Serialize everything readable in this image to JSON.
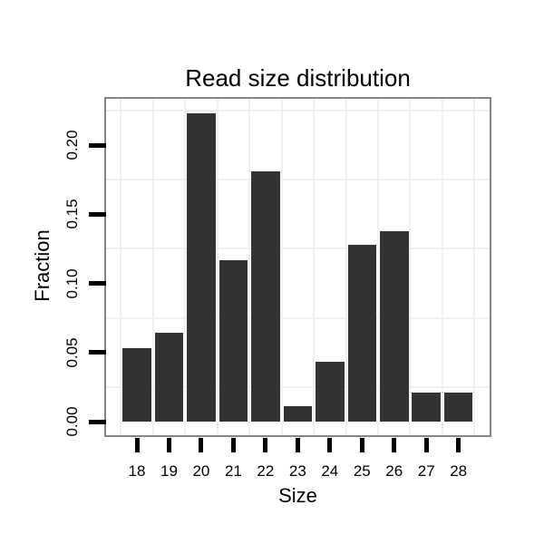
{
  "chart_data": {
    "type": "bar",
    "title": "Read size distribution",
    "xlabel": "Size",
    "ylabel": "Fraction",
    "categories": [
      "18",
      "19",
      "20",
      "21",
      "22",
      "23",
      "24",
      "25",
      "26",
      "27",
      "28"
    ],
    "values": [
      0.053,
      0.064,
      0.223,
      0.117,
      0.181,
      0.011,
      0.043,
      0.128,
      0.138,
      0.021,
      0.021
    ],
    "y_tick_labels": [
      "0.00",
      "0.05",
      "0.10",
      "0.15",
      "0.20"
    ],
    "y_tick_values": [
      0.0,
      0.05,
      0.1,
      0.15,
      0.2
    ],
    "ylim": [
      -0.01,
      0.234
    ],
    "grid": "on",
    "legend": "none",
    "colors": {
      "bar_fill": "#333333",
      "panel_border": "#858585",
      "gridline": "#f0f0f0",
      "tick": "#000000",
      "text": "#000000",
      "background": "#ffffff"
    }
  }
}
